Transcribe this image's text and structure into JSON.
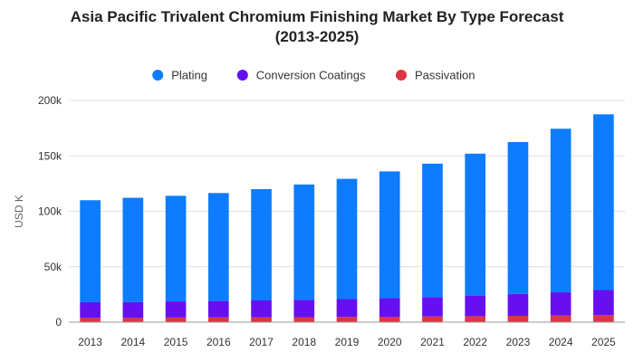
{
  "chart_data": {
    "type": "bar",
    "stacked": true,
    "title_line1": "Asia Pacific Trivalent Chromium Finishing Market By Type Forecast",
    "title_line2": "(2013-2025)",
    "ylabel": "USD K",
    "xlabel": "",
    "ylim": [
      0,
      200000
    ],
    "yticks": [
      "0",
      "50k",
      "100k",
      "150k",
      "200k"
    ],
    "ytick_values": [
      0,
      50000,
      100000,
      150000,
      200000
    ],
    "grid": true,
    "legend_position": "top-center",
    "categories": [
      "2013",
      "2014",
      "2015",
      "2016",
      "2017",
      "2018",
      "2019",
      "2020",
      "2021",
      "2022",
      "2023",
      "2024",
      "2025"
    ],
    "series": [
      {
        "name": "Passivation",
        "color": "#dc3545",
        "values": [
          4000,
          4000,
          4200,
          4300,
          4400,
          4500,
          4700,
          4900,
          5100,
          5400,
          5700,
          6000,
          6300
        ]
      },
      {
        "name": "Conversion Coatings",
        "color": "#6610f2",
        "values": [
          14000,
          14200,
          14500,
          14800,
          15200,
          15600,
          16100,
          16800,
          17600,
          18600,
          19700,
          21000,
          22700
        ]
      },
      {
        "name": "Plating",
        "color": "#0d7cff",
        "values": [
          92000,
          94000,
          95300,
          97400,
          100400,
          104100,
          108500,
          114300,
          120300,
          128000,
          137100,
          147500,
          158500
        ]
      }
    ],
    "legend_order": [
      "Plating",
      "Conversion Coatings",
      "Passivation"
    ]
  }
}
